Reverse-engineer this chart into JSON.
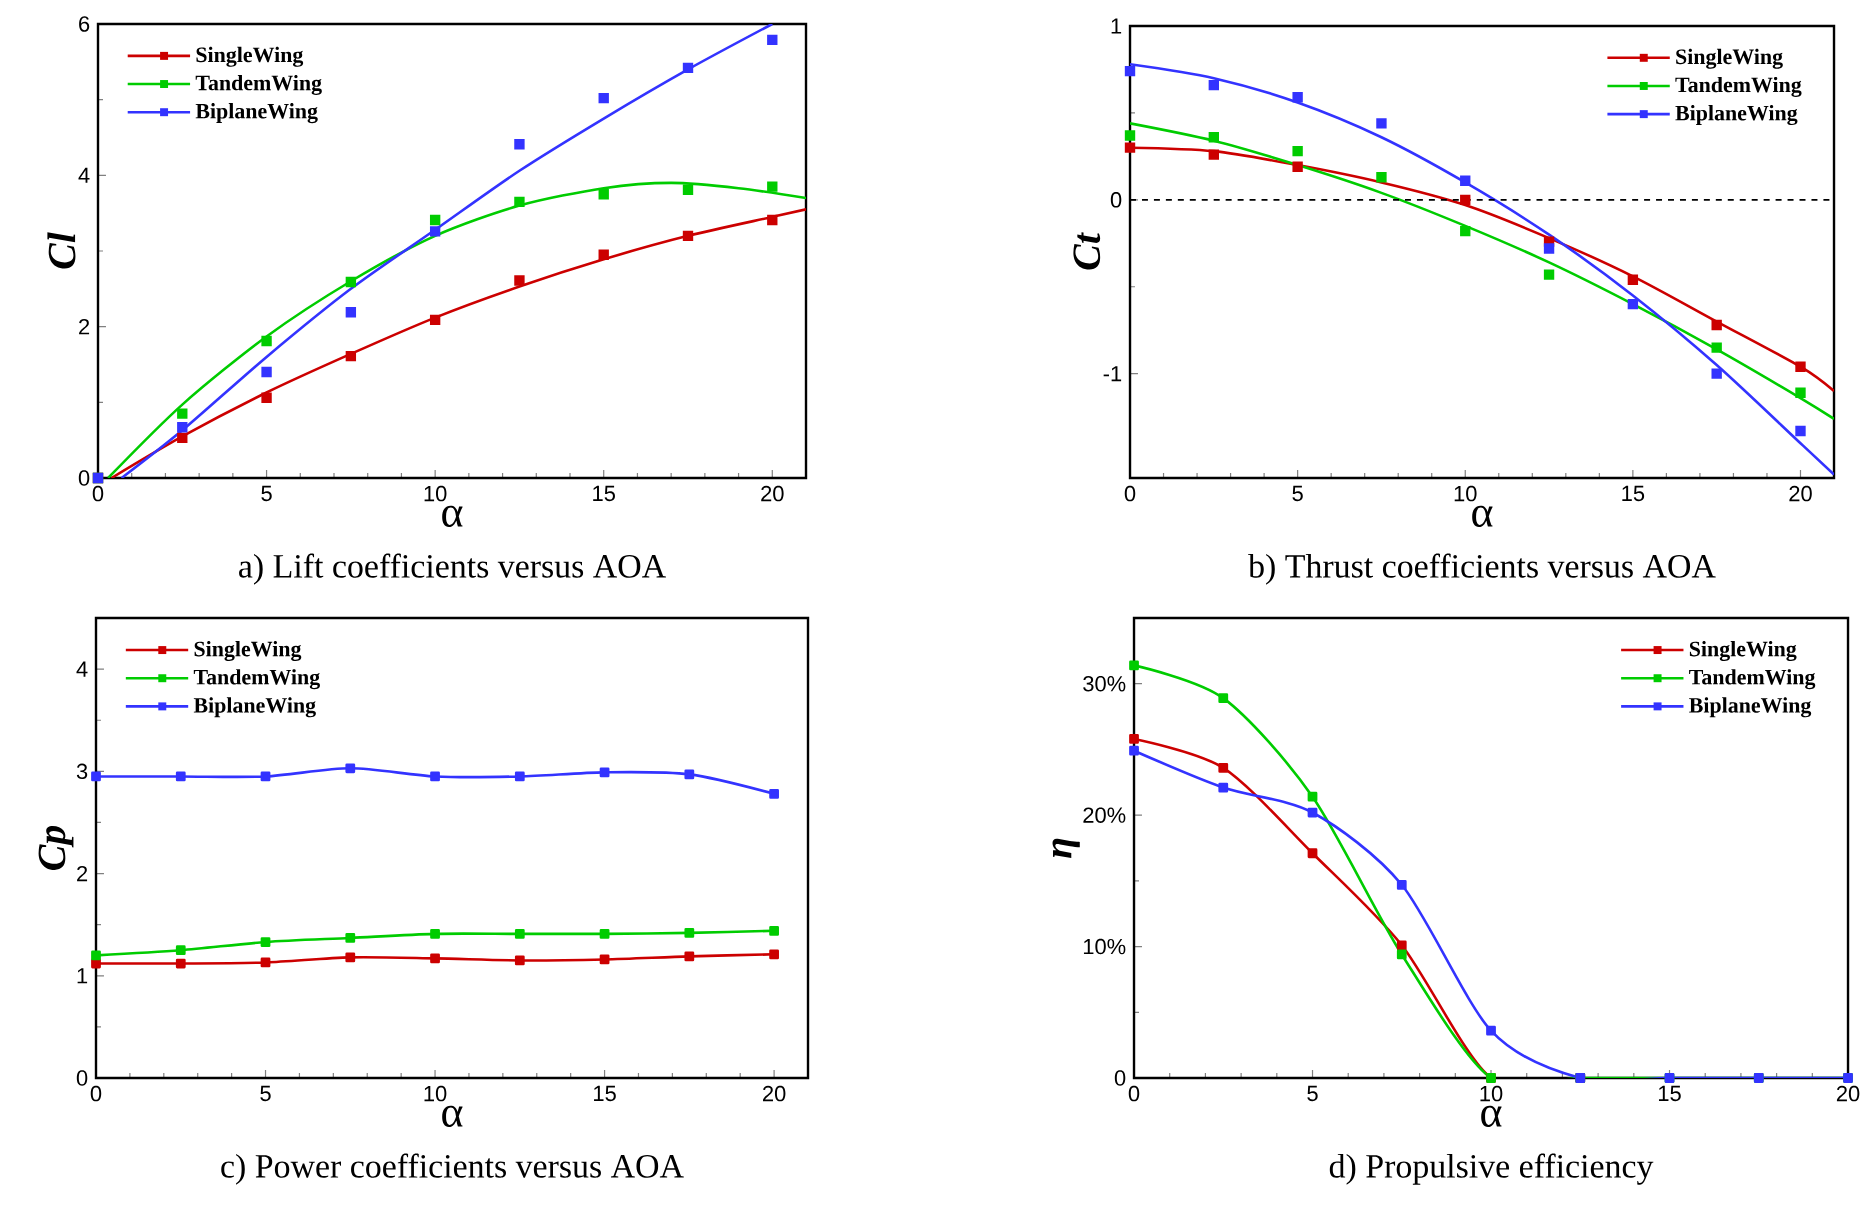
{
  "chart_data": [
    {
      "type": "scatter",
      "title": "a) Lift coefficients versus AOA",
      "xlabel": "α",
      "ylabel": "Cl",
      "xlim": [
        0,
        21
      ],
      "ylim": [
        0,
        6
      ],
      "xticks": [
        0,
        5,
        10,
        15,
        20
      ],
      "yticks": [
        0,
        2,
        4,
        6
      ],
      "legend": "top left",
      "marker": "square",
      "series": [
        {
          "name": "SingleWing",
          "color": "#cc0000",
          "x": [
            0,
            2.5,
            5,
            7.5,
            10,
            12.5,
            15,
            17.5,
            20
          ],
          "values": [
            0,
            0.53,
            1.06,
            1.61,
            2.09,
            2.61,
            2.95,
            3.2,
            3.41
          ]
        },
        {
          "name": "TandemWing",
          "color": "#00cc00",
          "x": [
            0,
            2.5,
            5,
            7.5,
            10,
            12.5,
            15,
            17.5,
            20
          ],
          "values": [
            0,
            0.85,
            1.81,
            2.59,
            3.41,
            3.65,
            3.75,
            3.81,
            3.85
          ]
        },
        {
          "name": "BiplaneWing",
          "color": "#3333ff",
          "x": [
            0,
            2.5,
            5,
            7.5,
            10,
            12.5,
            15,
            17.5,
            20
          ],
          "values": [
            0,
            0.67,
            1.4,
            2.19,
            3.26,
            4.41,
            5.02,
            5.42,
            5.79
          ]
        },
        {
          "type": "line",
          "marker": "none",
          "color": "#cc0000",
          "x": [
            0.4,
            2.5,
            5,
            7.5,
            10,
            12.5,
            15,
            17.5,
            20,
            21
          ],
          "values": [
            0,
            0.55,
            1.13,
            1.64,
            2.12,
            2.53,
            2.89,
            3.2,
            3.45,
            3.55
          ]
        },
        {
          "type": "line",
          "marker": "none",
          "color": "#00cc00",
          "x": [
            0.3,
            2.5,
            5,
            7.5,
            10,
            12.5,
            15,
            17,
            19,
            21
          ],
          "values": [
            0,
            0.97,
            1.87,
            2.6,
            3.2,
            3.6,
            3.83,
            3.9,
            3.83,
            3.7
          ]
        },
        {
          "type": "line",
          "marker": "none",
          "color": "#3333ff",
          "x": [
            0.7,
            2.5,
            5,
            7.5,
            10,
            12.5,
            15,
            17.5,
            20
          ],
          "values": [
            0,
            0.63,
            1.6,
            2.5,
            3.28,
            4.06,
            4.75,
            5.4,
            6.0
          ]
        }
      ]
    },
    {
      "type": "scatter",
      "title": "b) Thrust coefficients versus AOA",
      "xlabel": "α",
      "ylabel": "Ct",
      "xlim": [
        0,
        21
      ],
      "ylim": [
        -1.6,
        1
      ],
      "xticks": [
        0,
        5,
        10,
        15,
        20
      ],
      "yticks": [
        -1,
        0,
        1
      ],
      "legend": "top right",
      "marker": "square",
      "ref_lines": [
        {
          "axis": "y",
          "value": 0,
          "color": "#000000",
          "line_style": "dashed"
        }
      ],
      "series": [
        {
          "name": "SingleWing",
          "color": "#cc0000",
          "x": [
            0,
            2.5,
            5,
            7.5,
            10,
            12.5,
            15,
            17.5,
            20
          ],
          "values": [
            0.3,
            0.26,
            0.19,
            null,
            0.0,
            -0.24,
            -0.46,
            -0.72,
            -0.96
          ]
        },
        {
          "name": "TandemWing",
          "color": "#00cc00",
          "x": [
            0,
            2.5,
            5,
            7.5,
            10,
            12.5,
            15,
            17.5,
            20
          ],
          "values": [
            0.37,
            0.36,
            0.28,
            0.13,
            -0.18,
            -0.43,
            null,
            -0.85,
            -1.11
          ]
        },
        {
          "name": "BiplaneWing",
          "color": "#3333ff",
          "x": [
            0,
            2.5,
            5,
            7.5,
            10,
            12.5,
            15,
            17.5,
            20
          ],
          "values": [
            0.74,
            0.66,
            0.59,
            0.44,
            0.11,
            -0.28,
            -0.6,
            -1.0,
            -1.33
          ]
        },
        {
          "type": "line",
          "marker": "none",
          "color": "#cc0000",
          "x": [
            0,
            2.5,
            5,
            7.5,
            10,
            12.5,
            15,
            17.5,
            20,
            21
          ],
          "values": [
            0.3,
            0.28,
            0.2,
            0.1,
            -0.03,
            -0.22,
            -0.44,
            -0.7,
            -0.96,
            -1.1
          ]
        },
        {
          "type": "line",
          "marker": "none",
          "color": "#00cc00",
          "x": [
            0,
            2.5,
            5,
            7.5,
            10,
            12.5,
            15,
            17.5,
            20,
            21
          ],
          "values": [
            0.44,
            0.34,
            0.2,
            0.04,
            -0.15,
            -0.36,
            -0.6,
            -0.86,
            -1.14,
            -1.26
          ]
        },
        {
          "type": "line",
          "marker": "none",
          "color": "#3333ff",
          "x": [
            0,
            2.5,
            5,
            7.5,
            10,
            12.5,
            15,
            17.5,
            20,
            21
          ],
          "values": [
            0.78,
            0.7,
            0.56,
            0.36,
            0.1,
            -0.2,
            -0.55,
            -0.95,
            -1.4,
            -1.58
          ]
        }
      ]
    },
    {
      "type": "line",
      "title": "c) Power coefficients versus AOA",
      "xlabel": "α",
      "ylabel": "Cp",
      "xlim": [
        0,
        21
      ],
      "ylim": [
        0,
        4.5
      ],
      "xticks": [
        0,
        5,
        10,
        15,
        20
      ],
      "yticks": [
        0,
        1,
        2,
        3,
        4
      ],
      "legend": "top left",
      "marker": "square",
      "x": [
        0,
        2.5,
        5,
        7.5,
        10,
        12.5,
        15,
        17.5,
        20
      ],
      "series": [
        {
          "name": "SingleWing",
          "color": "#cc0000",
          "values": [
            1.12,
            1.12,
            1.13,
            1.18,
            1.17,
            1.15,
            1.16,
            1.19,
            1.21
          ]
        },
        {
          "name": "TandemWing",
          "color": "#00cc00",
          "values": [
            1.2,
            1.25,
            1.33,
            1.37,
            1.41,
            1.41,
            1.41,
            1.42,
            1.44
          ]
        },
        {
          "name": "BiplaneWing",
          "color": "#3333ff",
          "values": [
            2.95,
            2.95,
            2.95,
            3.03,
            2.95,
            2.95,
            2.99,
            2.97,
            2.78
          ]
        }
      ]
    },
    {
      "type": "line",
      "title": "d) Propulsive efficiency",
      "xlabel": "α",
      "ylabel": "η",
      "xlim": [
        0,
        20
      ],
      "ylim": [
        0,
        35
      ],
      "xticks": [
        0,
        5,
        10,
        15,
        20
      ],
      "yticks": [
        0,
        {
          "value": 10,
          "label": "10%"
        },
        {
          "value": 20,
          "label": "20%"
        },
        {
          "value": 30,
          "label": "30%"
        }
      ],
      "legend": "top right",
      "marker": "square",
      "x": [
        0,
        2.5,
        5,
        7.5,
        10,
        12.5,
        15,
        17.5,
        20
      ],
      "series": [
        {
          "name": "SingleWing",
          "color": "#cc0000",
          "values": [
            25.8,
            23.6,
            17.1,
            10.1,
            0,
            0,
            null,
            null,
            null
          ]
        },
        {
          "name": "TandemWing",
          "color": "#00cc00",
          "values": [
            31.4,
            28.9,
            21.4,
            9.4,
            0,
            0,
            0,
            0,
            0
          ]
        },
        {
          "name": "BiplaneWing",
          "color": "#3333ff",
          "values": [
            24.9,
            22.1,
            20.2,
            14.7,
            3.6,
            0,
            0,
            0,
            0
          ]
        }
      ]
    }
  ]
}
